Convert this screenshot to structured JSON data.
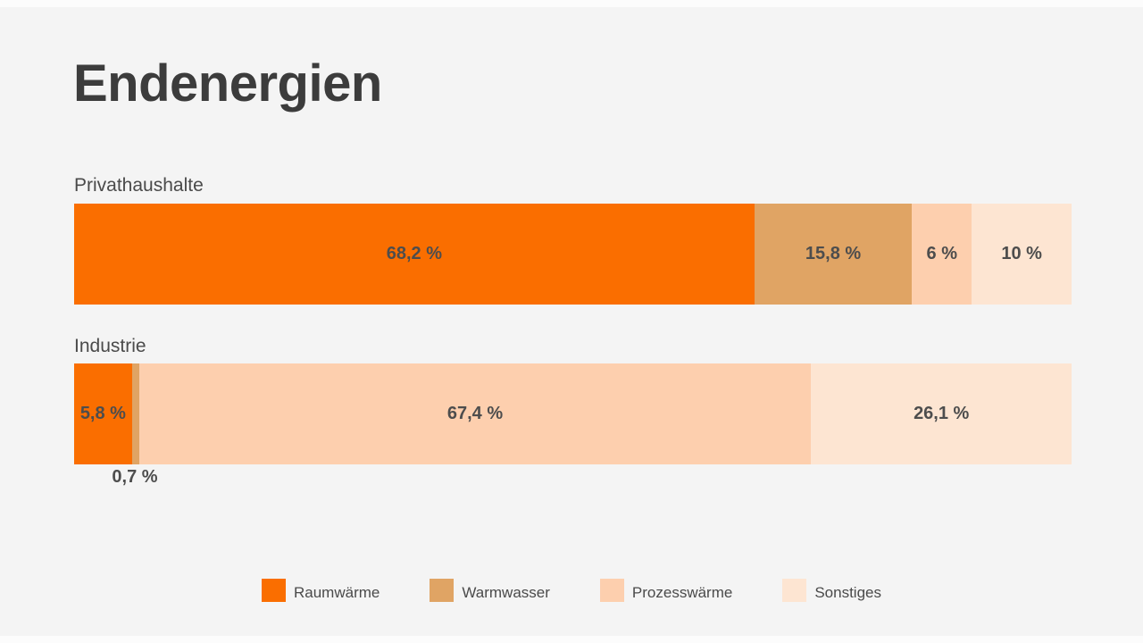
{
  "title": "Endenergien",
  "colors": {
    "background": "#f4f4f4",
    "title_text": "#3c3c3c",
    "label_text": "#4a4a4a",
    "value_text": "#4d4d4d",
    "raumwaerme": "#fa6e00",
    "warmwasser": "#e0a464",
    "prozesswaerme": "#fdcfae",
    "sonstiges": "#fde5d2"
  },
  "chart_data": {
    "type": "bar",
    "variant": "horizontal-stacked-100percent",
    "title": "Endenergien",
    "unit": "%",
    "categories": [
      "Raumwärme",
      "Warmwasser",
      "Prozesswärme",
      "Sonstiges"
    ],
    "legend_position": "bottom-center",
    "bars": [
      {
        "label": "Privathaushalte",
        "segments": [
          {
            "name": "Raumwärme",
            "value": 68.2,
            "label": "68,2 %"
          },
          {
            "name": "Warmwasser",
            "value": 15.8,
            "label": "15,8 %"
          },
          {
            "name": "Prozesswärme",
            "value": 6,
            "label": "6 %"
          },
          {
            "name": "Sonstiges",
            "value": 10,
            "label": "10 %"
          }
        ]
      },
      {
        "label": "Industrie",
        "segments": [
          {
            "name": "Raumwärme",
            "value": 5.8,
            "label": "5,8 %"
          },
          {
            "name": "Warmwasser",
            "value": 0.7,
            "label": "0,7 %",
            "label_position": "below-bar"
          },
          {
            "name": "Prozesswärme",
            "value": 67.4,
            "label": "67,4 %"
          },
          {
            "name": "Sonstiges",
            "value": 26.1,
            "label": "26,1 %"
          }
        ]
      }
    ],
    "legend": [
      {
        "label": "Raumwärme",
        "color": "#fa6e00"
      },
      {
        "label": "Warmwasser",
        "color": "#e0a464"
      },
      {
        "label": "Prozesswärme",
        "color": "#fdcfae"
      },
      {
        "label": "Sonstiges",
        "color": "#fde5d2"
      }
    ]
  }
}
